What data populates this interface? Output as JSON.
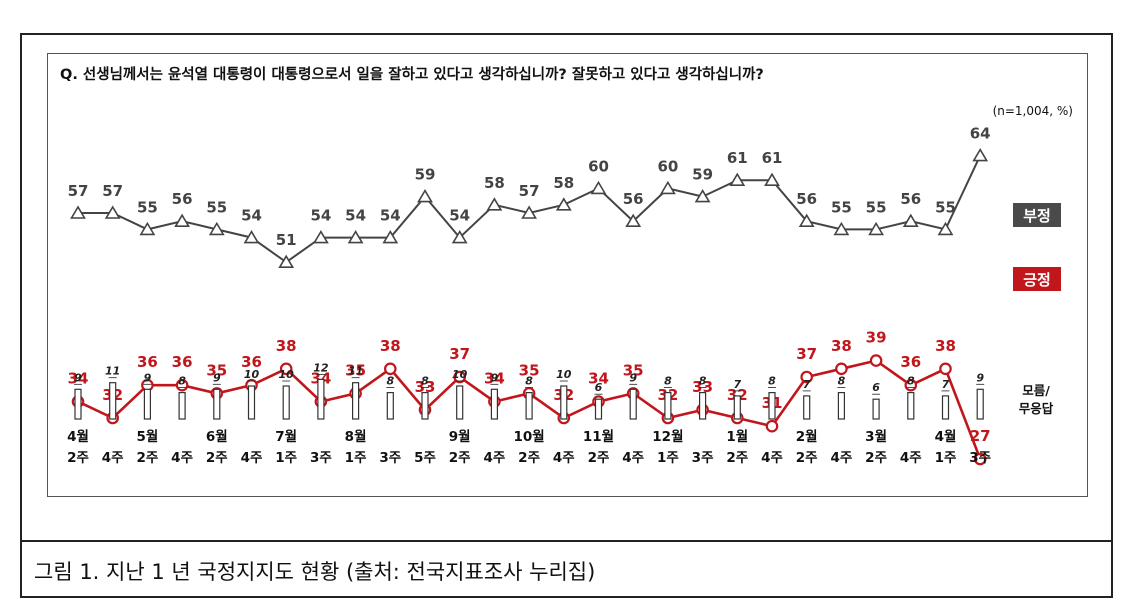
{
  "figure": {
    "caption": "그림 1. 지난 1 년 국정지지도 현황 (출처: 전국지표조사 누리집)"
  },
  "chart_data": {
    "type": "line",
    "title": "Q. 선생님께서는 윤석열 대통령이 대통령으로서 일을 잘하고 있다고 생각하십니까? 잘못하고 있다고 생각하십니까?",
    "note": "(n=1,004, %)",
    "x_month_labels": [
      "4월",
      "",
      "5월",
      "",
      "6월",
      "",
      "7월",
      "",
      "8월",
      "",
      "",
      "9월",
      "",
      "10월",
      "",
      "11월",
      "",
      "12월",
      "",
      "1월",
      "",
      "2월",
      "",
      "3월",
      "",
      "4월",
      ""
    ],
    "x_week_labels": [
      "2주",
      "4주",
      "2주",
      "4주",
      "2주",
      "4주",
      "1주",
      "3주",
      "1주",
      "3주",
      "5주",
      "2주",
      "4주",
      "2주",
      "4주",
      "2주",
      "4주",
      "1주",
      "3주",
      "2주",
      "4주",
      "2주",
      "4주",
      "2주",
      "4주",
      "1주",
      "3주"
    ],
    "series": [
      {
        "name": "부정",
        "color": "#444444",
        "marker": "triangle",
        "values": [
          57,
          57,
          55,
          56,
          55,
          54,
          51,
          54,
          54,
          54,
          59,
          54,
          58,
          57,
          58,
          60,
          56,
          60,
          59,
          61,
          61,
          56,
          55,
          55,
          56,
          55,
          64
        ]
      },
      {
        "name": "긍정",
        "color": "#c0161c",
        "marker": "circle",
        "values": [
          34,
          32,
          36,
          36,
          35,
          36,
          38,
          34,
          35,
          38,
          33,
          37,
          34,
          35,
          32,
          34,
          35,
          32,
          33,
          32,
          31,
          37,
          38,
          39,
          36,
          38,
          27
        ]
      },
      {
        "name": "모름/무응답",
        "legend_lines": [
          "모름/",
          "무응답"
        ],
        "color": "#333333",
        "marker": "bar",
        "values": [
          9,
          11,
          9,
          8,
          9,
          10,
          10,
          12,
          11,
          8,
          8,
          10,
          9,
          8,
          10,
          6,
          9,
          8,
          8,
          7,
          8,
          7,
          8,
          6,
          8,
          7,
          9
        ]
      }
    ]
  }
}
